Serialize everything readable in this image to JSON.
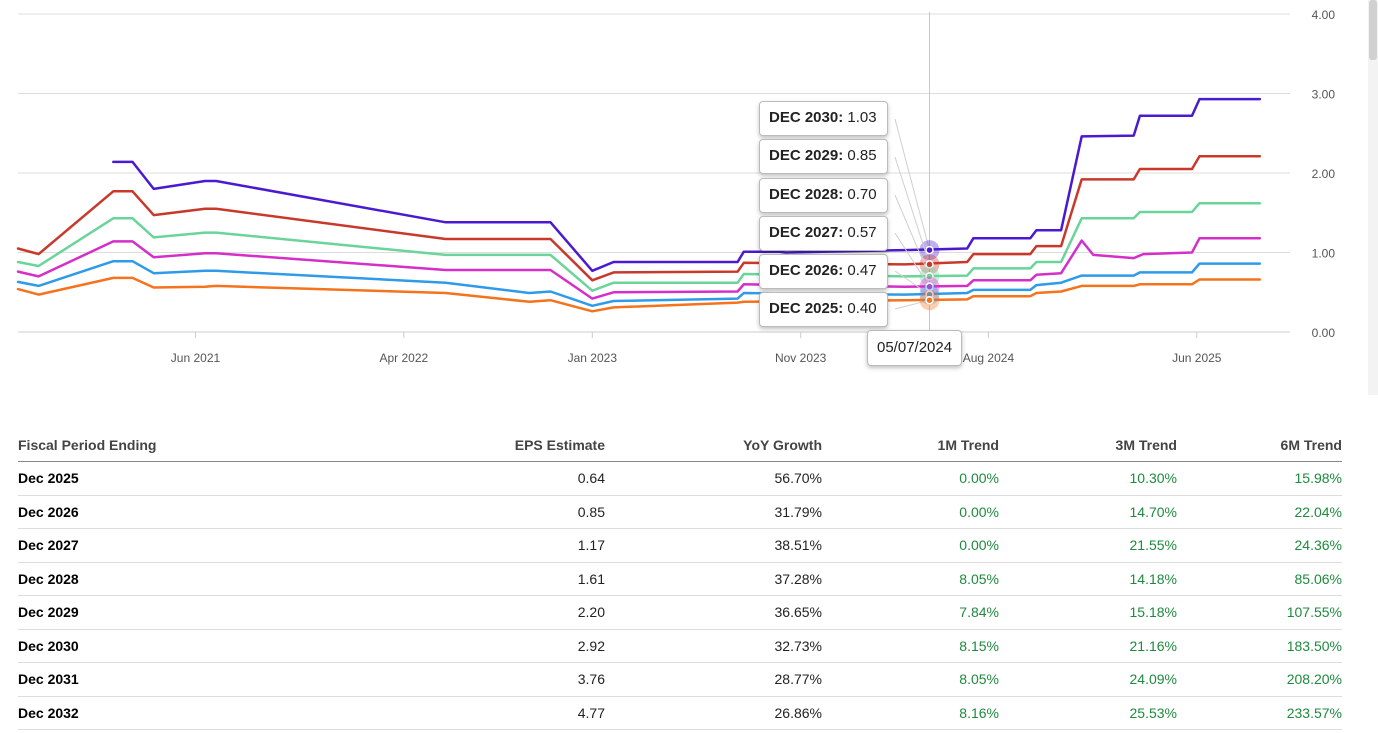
{
  "colors": {
    "dec_2025": "#f4731c",
    "dec_2026": "#2f9be8",
    "dec_2027": "#d42fc8",
    "dec_2028": "#6ad49a",
    "dec_2029": "#c8392b",
    "dec_2030": "#4a1ad0",
    "positive_trend": "#1e8a3e",
    "grid": "#dddddd"
  },
  "chart_data": {
    "type": "line",
    "title": "",
    "xlabel": "",
    "ylabel": "",
    "x_tick_labels": [
      "Jun 2021",
      "Apr 2022",
      "Jan 2023",
      "Nov 2023",
      "Aug 2024",
      "Jun 2025"
    ],
    "y_tick_labels": [
      "4.00",
      "3.00",
      "2.00",
      "1.00",
      "0.00"
    ],
    "ylim": [
      0,
      4
    ],
    "x_domain": [
      "2020-09-15",
      "2025-10-15"
    ],
    "series": [
      {
        "name": "DEC 2030",
        "color_key": "dec_2030",
        "points": [
          [
            "2021-02-01",
            2.14
          ],
          [
            "2021-03-01",
            2.14
          ],
          [
            "2021-04-01",
            1.8
          ],
          [
            "2021-06-15",
            1.9
          ],
          [
            "2021-07-01",
            1.9
          ],
          [
            "2022-06-01",
            1.38
          ],
          [
            "2022-10-01",
            1.38
          ],
          [
            "2022-11-01",
            1.38
          ],
          [
            "2023-01-01",
            0.77
          ],
          [
            "2023-02-01",
            0.88
          ],
          [
            "2023-08-01",
            0.88
          ],
          [
            "2023-08-10",
            1.01
          ],
          [
            "2023-10-01",
            1.01
          ],
          [
            "2023-10-10",
            1.0
          ],
          [
            "2024-04-01",
            1.03
          ],
          [
            "2024-07-01",
            1.05
          ],
          [
            "2024-07-10",
            1.18
          ],
          [
            "2024-10-01",
            1.18
          ],
          [
            "2024-10-10",
            1.28
          ],
          [
            "2024-11-15",
            1.28
          ],
          [
            "2024-12-15",
            2.46
          ],
          [
            "2025-03-01",
            2.47
          ],
          [
            "2025-03-10",
            2.72
          ],
          [
            "2025-05-25",
            2.72
          ],
          [
            "2025-06-05",
            2.93
          ],
          [
            "2025-09-01",
            2.93
          ]
        ]
      },
      {
        "name": "DEC 2029",
        "color_key": "dec_2029",
        "points": [
          [
            "2020-09-15",
            1.05
          ],
          [
            "2020-10-15",
            0.98
          ],
          [
            "2021-02-01",
            1.77
          ],
          [
            "2021-03-01",
            1.77
          ],
          [
            "2021-04-01",
            1.47
          ],
          [
            "2021-06-15",
            1.55
          ],
          [
            "2021-07-01",
            1.55
          ],
          [
            "2022-06-01",
            1.17
          ],
          [
            "2022-10-01",
            1.17
          ],
          [
            "2022-11-01",
            1.17
          ],
          [
            "2023-01-01",
            0.65
          ],
          [
            "2023-02-01",
            0.75
          ],
          [
            "2023-08-01",
            0.76
          ],
          [
            "2023-08-10",
            0.87
          ],
          [
            "2024-04-01",
            0.85
          ],
          [
            "2024-07-01",
            0.88
          ],
          [
            "2024-07-10",
            0.98
          ],
          [
            "2024-10-01",
            0.98
          ],
          [
            "2024-10-10",
            1.08
          ],
          [
            "2024-11-15",
            1.08
          ],
          [
            "2024-12-15",
            1.92
          ],
          [
            "2025-03-01",
            1.92
          ],
          [
            "2025-03-10",
            2.05
          ],
          [
            "2025-05-25",
            2.05
          ],
          [
            "2025-06-05",
            2.21
          ],
          [
            "2025-09-01",
            2.21
          ]
        ]
      },
      {
        "name": "DEC 2028",
        "color_key": "dec_2028",
        "points": [
          [
            "2020-09-15",
            0.88
          ],
          [
            "2020-10-15",
            0.83
          ],
          [
            "2021-02-01",
            1.43
          ],
          [
            "2021-03-01",
            1.43
          ],
          [
            "2021-04-01",
            1.19
          ],
          [
            "2021-06-15",
            1.25
          ],
          [
            "2021-07-01",
            1.25
          ],
          [
            "2022-06-01",
            0.97
          ],
          [
            "2022-10-01",
            0.97
          ],
          [
            "2022-11-01",
            0.97
          ],
          [
            "2023-01-01",
            0.52
          ],
          [
            "2023-02-01",
            0.62
          ],
          [
            "2023-08-01",
            0.62
          ],
          [
            "2023-08-10",
            0.73
          ],
          [
            "2024-04-01",
            0.7
          ],
          [
            "2024-07-01",
            0.71
          ],
          [
            "2024-07-10",
            0.8
          ],
          [
            "2024-10-01",
            0.8
          ],
          [
            "2024-10-10",
            0.88
          ],
          [
            "2024-11-15",
            0.88
          ],
          [
            "2024-12-15",
            1.43
          ],
          [
            "2025-03-01",
            1.43
          ],
          [
            "2025-03-10",
            1.51
          ],
          [
            "2025-05-25",
            1.51
          ],
          [
            "2025-06-05",
            1.62
          ],
          [
            "2025-09-01",
            1.62
          ]
        ]
      },
      {
        "name": "DEC 2027",
        "color_key": "dec_2027",
        "points": [
          [
            "2020-09-15",
            0.76
          ],
          [
            "2020-10-15",
            0.7
          ],
          [
            "2021-02-01",
            1.14
          ],
          [
            "2021-03-01",
            1.14
          ],
          [
            "2021-04-01",
            0.94
          ],
          [
            "2021-06-15",
            0.99
          ],
          [
            "2021-07-01",
            0.99
          ],
          [
            "2022-06-01",
            0.78
          ],
          [
            "2022-10-01",
            0.78
          ],
          [
            "2022-11-01",
            0.78
          ],
          [
            "2023-01-01",
            0.42
          ],
          [
            "2023-02-01",
            0.5
          ],
          [
            "2023-08-01",
            0.51
          ],
          [
            "2023-08-10",
            0.6
          ],
          [
            "2024-04-01",
            0.57
          ],
          [
            "2024-07-01",
            0.58
          ],
          [
            "2024-07-10",
            0.65
          ],
          [
            "2024-10-01",
            0.65
          ],
          [
            "2024-10-10",
            0.72
          ],
          [
            "2024-11-15",
            0.74
          ],
          [
            "2024-12-15",
            1.15
          ],
          [
            "2025-01-01",
            0.97
          ],
          [
            "2025-03-01",
            0.93
          ],
          [
            "2025-03-15",
            0.98
          ],
          [
            "2025-05-25",
            1.0
          ],
          [
            "2025-06-05",
            1.18
          ],
          [
            "2025-09-01",
            1.18
          ]
        ]
      },
      {
        "name": "DEC 2026",
        "color_key": "dec_2026",
        "points": [
          [
            "2020-09-15",
            0.63
          ],
          [
            "2020-10-15",
            0.58
          ],
          [
            "2021-02-01",
            0.89
          ],
          [
            "2021-03-01",
            0.89
          ],
          [
            "2021-04-01",
            0.74
          ],
          [
            "2021-06-15",
            0.77
          ],
          [
            "2021-07-01",
            0.77
          ],
          [
            "2022-06-01",
            0.62
          ],
          [
            "2022-10-01",
            0.49
          ],
          [
            "2022-11-01",
            0.51
          ],
          [
            "2023-01-01",
            0.33
          ],
          [
            "2023-02-01",
            0.39
          ],
          [
            "2023-08-01",
            0.42
          ],
          [
            "2023-08-10",
            0.49
          ],
          [
            "2024-04-01",
            0.47
          ],
          [
            "2024-07-01",
            0.49
          ],
          [
            "2024-07-10",
            0.53
          ],
          [
            "2024-10-01",
            0.53
          ],
          [
            "2024-10-10",
            0.59
          ],
          [
            "2024-11-15",
            0.62
          ],
          [
            "2024-12-15",
            0.71
          ],
          [
            "2025-03-01",
            0.71
          ],
          [
            "2025-03-10",
            0.75
          ],
          [
            "2025-05-25",
            0.75
          ],
          [
            "2025-06-05",
            0.86
          ],
          [
            "2025-09-01",
            0.86
          ]
        ]
      },
      {
        "name": "DEC 2025",
        "color_key": "dec_2025",
        "points": [
          [
            "2020-09-15",
            0.54
          ],
          [
            "2020-10-15",
            0.47
          ],
          [
            "2021-02-01",
            0.68
          ],
          [
            "2021-03-01",
            0.68
          ],
          [
            "2021-04-01",
            0.56
          ],
          [
            "2021-06-15",
            0.57
          ],
          [
            "2021-07-01",
            0.58
          ],
          [
            "2022-06-01",
            0.49
          ],
          [
            "2022-10-01",
            0.38
          ],
          [
            "2022-11-01",
            0.4
          ],
          [
            "2023-01-01",
            0.26
          ],
          [
            "2023-02-01",
            0.31
          ],
          [
            "2023-08-01",
            0.37
          ],
          [
            "2023-08-10",
            0.38
          ],
          [
            "2024-04-01",
            0.4
          ],
          [
            "2024-07-01",
            0.41
          ],
          [
            "2024-07-10",
            0.45
          ],
          [
            "2024-10-01",
            0.45
          ],
          [
            "2024-10-10",
            0.49
          ],
          [
            "2024-11-15",
            0.51
          ],
          [
            "2024-12-15",
            0.58
          ],
          [
            "2025-03-01",
            0.58
          ],
          [
            "2025-03-10",
            0.6
          ],
          [
            "2025-05-25",
            0.6
          ],
          [
            "2025-06-05",
            0.66
          ],
          [
            "2025-09-01",
            0.66
          ]
        ]
      }
    ],
    "hover": {
      "date_label": "05/07/2024",
      "x": "2024-05-07",
      "entries": [
        {
          "label": "DEC 2030:",
          "value": "1.03"
        },
        {
          "label": "DEC 2029:",
          "value": "0.85"
        },
        {
          "label": "DEC 2028:",
          "value": "0.70"
        },
        {
          "label": "DEC 2027:",
          "value": "0.57"
        },
        {
          "label": "DEC 2026:",
          "value": "0.47"
        },
        {
          "label": "DEC 2025:",
          "value": "0.40"
        }
      ]
    }
  },
  "table": {
    "headers": [
      "Fiscal Period Ending",
      "EPS Estimate",
      "YoY Growth",
      "1M Trend",
      "3M Trend",
      "6M Trend"
    ],
    "rows": [
      [
        "Dec 2025",
        "0.64",
        "56.70%",
        "0.00%",
        "10.30%",
        "15.98%"
      ],
      [
        "Dec 2026",
        "0.85",
        "31.79%",
        "0.00%",
        "14.70%",
        "22.04%"
      ],
      [
        "Dec 2027",
        "1.17",
        "38.51%",
        "0.00%",
        "21.55%",
        "24.36%"
      ],
      [
        "Dec 2028",
        "1.61",
        "37.28%",
        "8.05%",
        "14.18%",
        "85.06%"
      ],
      [
        "Dec 2029",
        "2.20",
        "36.65%",
        "7.84%",
        "15.18%",
        "107.55%"
      ],
      [
        "Dec 2030",
        "2.92",
        "32.73%",
        "8.15%",
        "21.16%",
        "183.50%"
      ],
      [
        "Dec 2031",
        "3.76",
        "28.77%",
        "8.05%",
        "24.09%",
        "208.20%"
      ],
      [
        "Dec 2032",
        "4.77",
        "26.86%",
        "8.16%",
        "25.53%",
        "233.57%"
      ]
    ]
  }
}
